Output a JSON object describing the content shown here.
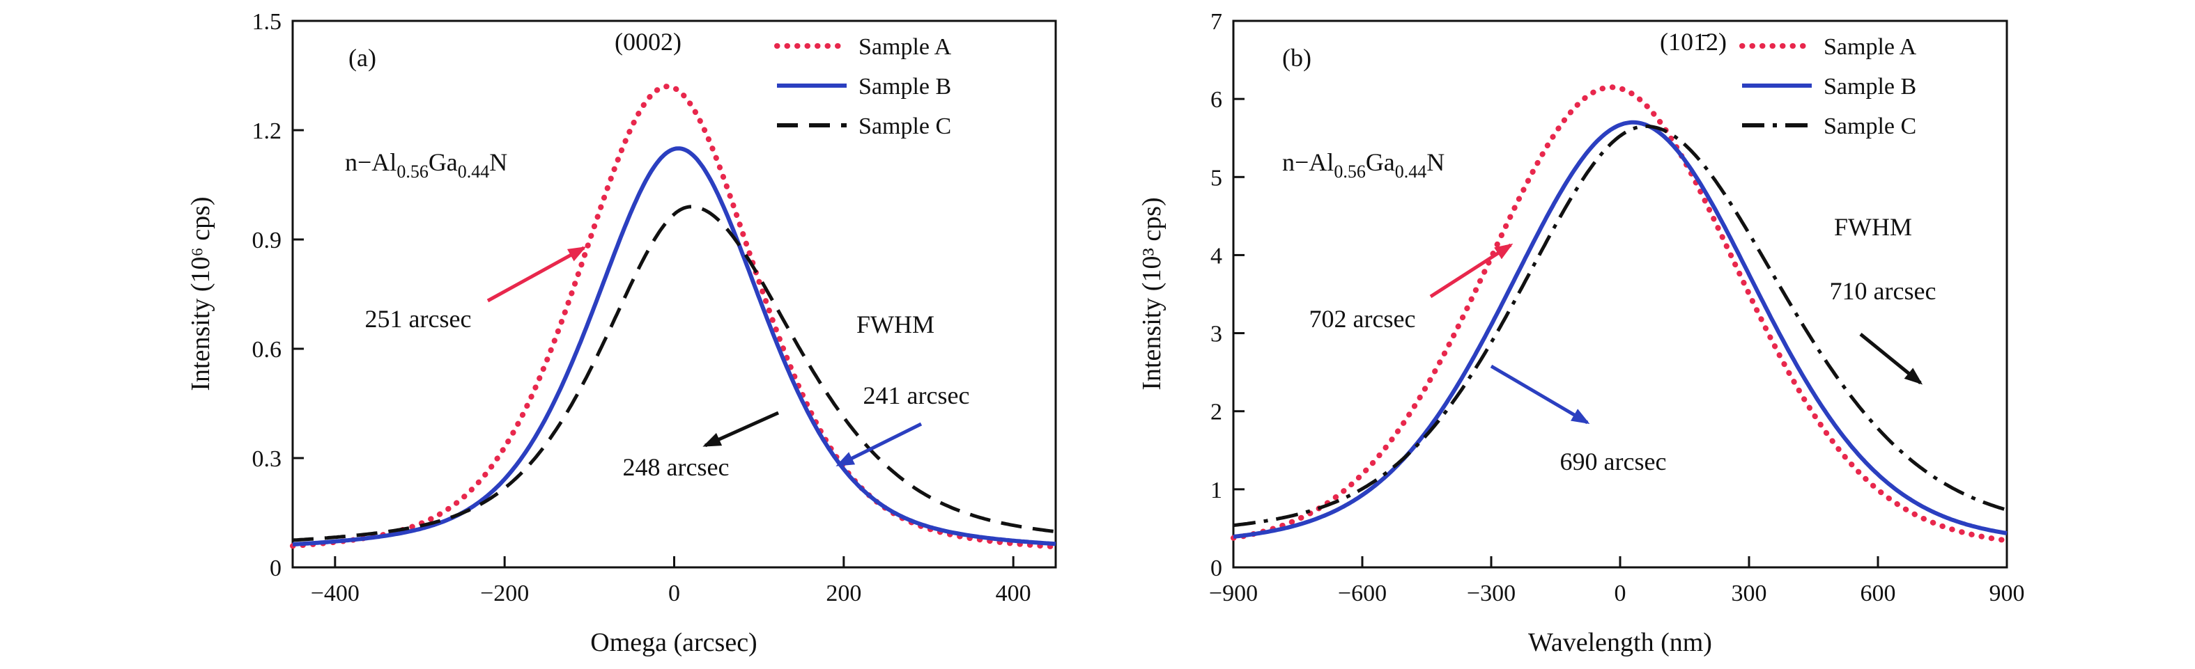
{
  "chart_data": [
    {
      "type": "line",
      "panel_label": "(a)",
      "reflection": "(0002)",
      "material_formula": {
        "prefix": "n−Al",
        "sub1": "0.56",
        "mid": "Ga",
        "sub2": "0.44",
        "suffix": "N"
      },
      "xlabel": "Omega (arcsec)",
      "ylabel": "Intensity (10⁶ cps)",
      "xlim": [
        -450,
        450
      ],
      "ylim": [
        0,
        1.5
      ],
      "grid": false,
      "legend_position": "top-right",
      "xticks": [
        {
          "v": -400,
          "label": "−400"
        },
        {
          "v": -200,
          "label": "−200"
        },
        {
          "v": 0,
          "label": "0"
        },
        {
          "v": 200,
          "label": "200"
        },
        {
          "v": 400,
          "label": "400"
        }
      ],
      "yticks": [
        {
          "v": 0,
          "label": "0"
        },
        {
          "v": 0.3,
          "label": "0.3"
        },
        {
          "v": 0.6,
          "label": "0.6"
        },
        {
          "v": 0.9,
          "label": "0.9"
        },
        {
          "v": 1.2,
          "label": "1.2"
        },
        {
          "v": 1.5,
          "label": "1.5"
        }
      ],
      "annotations": {
        "fwhm_title": "FWHM"
      },
      "series": [
        {
          "name": "Sample A",
          "color": "#e8274c",
          "style": "dotted",
          "fwhm_label": "251 arcsec",
          "peak_intensity_1e6_cps": 1.32,
          "model": {
            "center": -8,
            "fwhm": 251,
            "amp": 1.3,
            "baseline": 0.02,
            "eta": 0.4
          }
        },
        {
          "name": "Sample B",
          "color": "#2b3fc0",
          "style": "solid",
          "fwhm_label": "241 arcsec",
          "peak_intensity_1e6_cps": 1.15,
          "model": {
            "center": 5,
            "fwhm": 241,
            "amp": 1.12,
            "baseline": 0.03,
            "eta": 0.45
          }
        },
        {
          "name": "Sample C",
          "color": "#111111",
          "style": "dashed",
          "fwhm_label": "248 arcsec",
          "peak_intensity_1e6_cps": 0.99,
          "model": {
            "center": 20,
            "fwhm": 250,
            "fwhm_right": 300,
            "amp": 0.95,
            "baseline": 0.04,
            "eta": 0.55
          }
        }
      ]
    },
    {
      "type": "line",
      "panel_label": "(b)",
      "reflection": "(101̄2)",
      "material_formula": {
        "prefix": "n−Al",
        "sub1": "0.56",
        "mid": "Ga",
        "sub2": "0.44",
        "suffix": "N"
      },
      "xlabel": "Wavelength (nm)",
      "ylabel": "Intensity (10³ cps)",
      "xlim": [
        -900,
        900
      ],
      "ylim": [
        0,
        7
      ],
      "grid": false,
      "legend_position": "top-right",
      "xticks": [
        {
          "v": -900,
          "label": "−900"
        },
        {
          "v": -600,
          "label": "−600"
        },
        {
          "v": -300,
          "label": "−300"
        },
        {
          "v": 0,
          "label": "0"
        },
        {
          "v": 300,
          "label": "300"
        },
        {
          "v": 600,
          "label": "600"
        },
        {
          "v": 900,
          "label": "900"
        }
      ],
      "yticks": [
        {
          "v": 0,
          "label": "0"
        },
        {
          "v": 1,
          "label": "1"
        },
        {
          "v": 2,
          "label": "2"
        },
        {
          "v": 3,
          "label": "3"
        },
        {
          "v": 4,
          "label": "4"
        },
        {
          "v": 5,
          "label": "5"
        },
        {
          "v": 6,
          "label": "6"
        },
        {
          "v": 7,
          "label": "7"
        }
      ],
      "annotations": {
        "fwhm_title": "FWHM"
      },
      "series": [
        {
          "name": "Sample A",
          "color": "#e8274c",
          "style": "dotted",
          "fwhm_label": "702 arcsec",
          "peak_intensity_1e3_cps": 6.15,
          "model": {
            "center": -20,
            "fwhm": 702,
            "amp": 6.0,
            "baseline": 0.15,
            "eta": 0.2
          }
        },
        {
          "name": "Sample B",
          "color": "#2b3fc0",
          "style": "solid",
          "fwhm_label": "690 arcsec",
          "peak_intensity_1e3_cps": 5.7,
          "model": {
            "center": 30,
            "fwhm": 690,
            "amp": 5.5,
            "baseline": 0.2,
            "eta": 0.25
          }
        },
        {
          "name": "Sample C",
          "color": "#111111",
          "style": "dashdot",
          "fwhm_label": "710 arcsec",
          "peak_intensity_1e3_cps": 5.65,
          "model": {
            "center": 60,
            "fwhm": 700,
            "fwhm_right": 760,
            "amp": 5.35,
            "baseline": 0.3,
            "eta": 0.35
          }
        }
      ]
    }
  ]
}
